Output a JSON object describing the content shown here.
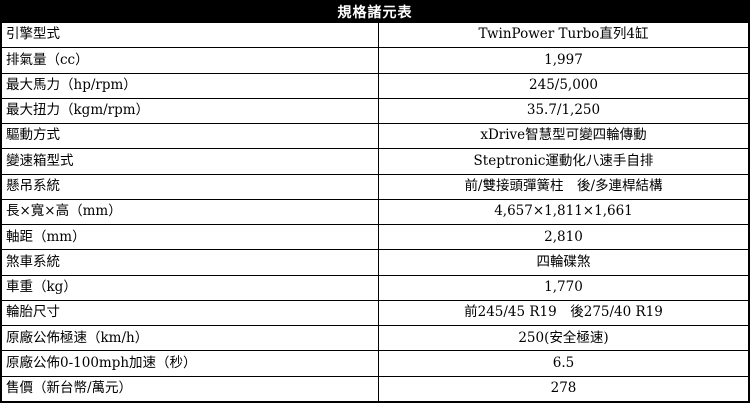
{
  "title": "規格諸元表",
  "colors": {
    "border": "#000000",
    "header_bg": "#000000",
    "header_text": "#ffffff",
    "cell_bg": "#ffffff",
    "cell_text": "#000000"
  },
  "table": {
    "columns": [
      "spec-name",
      "spec-value"
    ],
    "rows": [
      {
        "label": "引擎型式",
        "value": "TwinPower Turbo直列4缸"
      },
      {
        "label": "排氣量（cc）",
        "value": "1,997"
      },
      {
        "label": "最大馬力（hp/rpm）",
        "value": "245/5,000"
      },
      {
        "label": "最大扭力（kgm/rpm）",
        "value": "35.7/1,250"
      },
      {
        "label": "驅動方式",
        "value": "xDrive智慧型可變四輪傳動"
      },
      {
        "label": "變速箱型式",
        "value": "Steptronic運動化八速手自排"
      },
      {
        "label": "懸吊系統",
        "value": "前/雙接頭彈簧柱　後/多連桿結構"
      },
      {
        "label": "長×寬×高（mm）",
        "value": "4,657×1,811×1,661"
      },
      {
        "label": "軸距（mm）",
        "value": "2,810"
      },
      {
        "label": "煞車系統",
        "value": "四輪碟煞"
      },
      {
        "label": "車重（kg）",
        "value": "1,770"
      },
      {
        "label": "輪胎尺寸",
        "value": "前245/45 R19　後275/40 R19"
      },
      {
        "label": "原廠公佈極速（km/h）",
        "value": "250(安全極速)"
      },
      {
        "label": "原廠公佈0-100mph加速（秒）",
        "value": "6.5"
      },
      {
        "label": "售價（新台幣/萬元）",
        "value": "278"
      }
    ]
  }
}
